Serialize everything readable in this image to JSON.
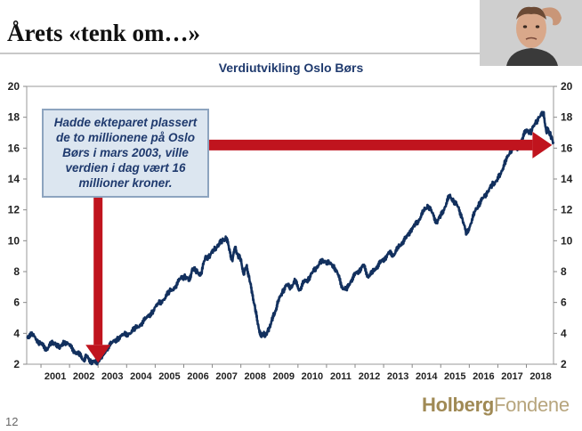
{
  "slide": {
    "title": "Årets «tenk om…»",
    "page_number": "12"
  },
  "logo": {
    "part1": "Holberg",
    "part2": "Fondene"
  },
  "colors": {
    "line": "#12305e",
    "arrow": "#c0141e",
    "callout_bg": "#dce6f0",
    "chart_title": "#1f3a6e"
  },
  "chart_data": {
    "type": "line",
    "title": "Verdiutvikling Oslo Børs",
    "xlabel": "",
    "ylabel": "",
    "xlim": [
      2000.5,
      2018.95
    ],
    "ylim": [
      2,
      20
    ],
    "y_ticks": [
      2,
      4,
      6,
      8,
      10,
      12,
      14,
      16,
      18,
      20
    ],
    "x_ticks": [
      "2001",
      "2002",
      "2003",
      "2004",
      "2005",
      "2006",
      "2007",
      "2008",
      "2009",
      "2010",
      "2011",
      "2012",
      "2013",
      "2014",
      "2015",
      "2016",
      "2017",
      "2018"
    ],
    "grid": false,
    "legend": "none",
    "series": [
      {
        "x": [
          2000.5,
          2000.7,
          2000.9,
          2001.0,
          2001.2,
          2001.35,
          2001.5,
          2001.65,
          2001.8,
          2002.0,
          2002.2,
          2002.35,
          2002.5,
          2002.6,
          2002.75,
          2002.9,
          2003.0,
          2003.15,
          2003.3,
          2003.5,
          2003.7,
          2003.9,
          2004.1,
          2004.3,
          2004.5,
          2004.7,
          2004.9,
          2005.1,
          2005.3,
          2005.5,
          2005.7,
          2005.9,
          2006.05,
          2006.2,
          2006.3,
          2006.45,
          2006.6,
          2006.75,
          2006.9,
          2007.05,
          2007.2,
          2007.35,
          2007.5,
          2007.6,
          2007.7,
          2007.8,
          2007.9,
          2008.0,
          2008.1,
          2008.2,
          2008.3,
          2008.4,
          2008.5,
          2008.6,
          2008.7,
          2008.8,
          2008.9,
          2009.0,
          2009.1,
          2009.2,
          2009.3,
          2009.45,
          2009.6,
          2009.75,
          2009.9,
          2010.05,
          2010.2,
          2010.35,
          2010.5,
          2010.65,
          2010.8,
          2010.95,
          2011.1,
          2011.25,
          2011.4,
          2011.55,
          2011.7,
          2011.85,
          2012.0,
          2012.15,
          2012.3,
          2012.45,
          2012.6,
          2012.75,
          2012.9,
          2013.05,
          2013.2,
          2013.35,
          2013.5,
          2013.65,
          2013.8,
          2013.95,
          2014.1,
          2014.25,
          2014.4,
          2014.55,
          2014.7,
          2014.85,
          2015.0,
          2015.15,
          2015.3,
          2015.45,
          2015.6,
          2015.75,
          2015.9,
          2016.05,
          2016.2,
          2016.35,
          2016.5,
          2016.65,
          2016.8,
          2016.95,
          2017.1,
          2017.25,
          2017.4,
          2017.55,
          2017.7,
          2017.85,
          2018.0,
          2018.15,
          2018.3,
          2018.45,
          2018.6,
          2018.7,
          2018.75,
          2018.85,
          2018.95
        ],
        "values": [
          3.8,
          3.9,
          3.5,
          3.3,
          3.0,
          3.3,
          3.4,
          3.0,
          3.5,
          3.2,
          2.8,
          2.6,
          2.3,
          2.5,
          2.2,
          2.1,
          2.2,
          2.5,
          3.0,
          3.4,
          3.7,
          3.9,
          4.0,
          4.3,
          4.6,
          5.0,
          5.4,
          5.9,
          6.2,
          6.7,
          7.0,
          7.6,
          7.7,
          7.4,
          8.2,
          8.0,
          7.8,
          8.9,
          9.0,
          9.4,
          9.7,
          10.0,
          10.2,
          9.4,
          8.7,
          9.6,
          9.0,
          8.8,
          7.8,
          8.4,
          7.5,
          6.6,
          5.6,
          4.6,
          3.8,
          4.0,
          3.9,
          4.4,
          4.9,
          5.4,
          6.0,
          6.7,
          7.1,
          7.0,
          7.4,
          6.8,
          7.3,
          7.5,
          7.9,
          8.3,
          8.6,
          8.7,
          8.5,
          8.4,
          7.8,
          7.0,
          6.8,
          7.4,
          7.8,
          8.1,
          8.4,
          7.7,
          7.9,
          8.3,
          8.6,
          8.9,
          9.2,
          9.1,
          9.5,
          9.9,
          10.2,
          10.7,
          11.0,
          11.4,
          11.9,
          12.3,
          11.8,
          11.2,
          11.6,
          12.2,
          12.9,
          12.6,
          12.2,
          11.5,
          10.4,
          11.1,
          11.9,
          12.4,
          12.8,
          13.2,
          13.6,
          13.9,
          14.3,
          15.1,
          15.6,
          16.2,
          16.0,
          16.6,
          17.2,
          17.0,
          17.6,
          18.0,
          18.3,
          17.0,
          17.3,
          16.8,
          16.3
        ]
      }
    ],
    "annotation": {
      "text": "Hadde ekteparet plassert de to millionene på Oslo Børs i mars 2003, ville verdien i dag vært 16 millioner kroner.",
      "arrow_down_target": {
        "x": 2003.0,
        "y": 2.1
      },
      "arrow_right_target": {
        "x": 2018.9,
        "y": 16.2
      }
    }
  }
}
